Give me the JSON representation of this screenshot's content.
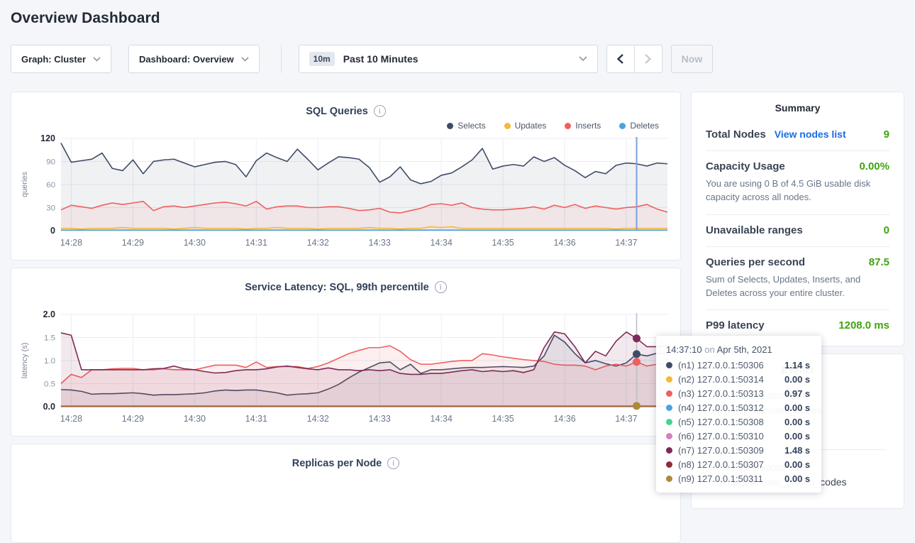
{
  "page_title": "Overview Dashboard",
  "colors": {
    "accent_green": "#3fa40e",
    "link_blue": "#1b6ce0",
    "selects": "#3f4c66",
    "updates": "#f7b836",
    "inserts": "#ef5f5f",
    "deletes": "#4da3e0",
    "hover_line_sql": "#7b9fe0",
    "hover_line_latency": "#b9bfc9",
    "page_background": "#f4f6fa"
  },
  "icons": {
    "info": "i",
    "chevron_down": "⌄",
    "chevron_left": "‹",
    "chevron_right": "›"
  },
  "controls": {
    "graph_dropdown": "Graph: Cluster",
    "dashboard_dropdown": "Dashboard: Overview",
    "time_badge": "10m",
    "time_label": "Past 10 Minutes",
    "now_label": "Now"
  },
  "summary": {
    "title": "Summary",
    "rows": [
      {
        "label": "Total Nodes",
        "link": "View nodes list",
        "value": "9"
      },
      {
        "label": "Capacity Usage",
        "value": "0.00%",
        "desc": "You are using 0 B of 4.5 GiB usable disk capacity across all nodes."
      },
      {
        "label": "Unavailable ranges",
        "value": "0"
      },
      {
        "label": "Queries per second",
        "value": "87.5",
        "desc": "Sum of Selects, Updates, Inserts, and Deletes across your entire cluster."
      },
      {
        "label": "P99 latency",
        "value": "1208.0 ms"
      }
    ]
  },
  "events": {
    "title": "Events",
    "items": [
      {
        "line1": "User root created table",
        "line2": "movr.public.promo_codes"
      },
      {
        "line1": "User root created table",
        "line2": "movr.public.user_promo_codes"
      }
    ]
  },
  "tooltip": {
    "time": "14:37:10",
    "on": "on",
    "date": "Apr 5th, 2021",
    "rows": [
      {
        "node": "(n1) 127.0.0.1:50306",
        "value": "1.14 s",
        "color": "#3f4c66"
      },
      {
        "node": "(n2) 127.0.0.1:50314",
        "value": "0.00 s",
        "color": "#f7b836"
      },
      {
        "node": "(n3) 127.0.0.1:50313",
        "value": "0.97 s",
        "color": "#ef5f5f"
      },
      {
        "node": "(n4) 127.0.0.1:50312",
        "value": "0.00 s",
        "color": "#4da3e0"
      },
      {
        "node": "(n5) 127.0.0.1:50308",
        "value": "0.00 s",
        "color": "#3fd68f"
      },
      {
        "node": "(n6) 127.0.0.1:50310",
        "value": "0.00 s",
        "color": "#d77fc0"
      },
      {
        "node": "(n7) 127.0.0.1:50309",
        "value": "1.48 s",
        "color": "#7d2a57"
      },
      {
        "node": "(n8) 127.0.0.1:50307",
        "value": "0.00 s",
        "color": "#8f2b3c"
      },
      {
        "node": "(n9) 127.0.0.1:50311",
        "value": "0.00 s",
        "color": "#ab8b3a"
      }
    ]
  },
  "chart_data": [
    {
      "type": "line",
      "title": "SQL Queries",
      "ylabel": "queries",
      "ylim": [
        0,
        120
      ],
      "y_ticks": [
        0,
        30,
        60,
        90,
        120
      ],
      "y_tick_labels": [
        "0",
        "30",
        "60",
        "90",
        "120"
      ],
      "x_labels": [
        "14:28",
        "14:29",
        "14:30",
        "14:31",
        "14:32",
        "14:33",
        "14:34",
        "14:35",
        "14:36",
        "14:37"
      ],
      "x_tick_idx": [
        1,
        7,
        13,
        19,
        25,
        31,
        37,
        43,
        49,
        55
      ],
      "n_points": 60,
      "grid": true,
      "legend_position": "top-right",
      "legend": [
        {
          "name": "Selects",
          "color": "#3f4c66"
        },
        {
          "name": "Updates",
          "color": "#f7b836"
        },
        {
          "name": "Inserts",
          "color": "#ef5f5f"
        },
        {
          "name": "Deletes",
          "color": "#4da3e0"
        }
      ],
      "hover": {
        "idx": 56,
        "color": "#7b9fe0",
        "width": 2,
        "time": "14:37:10"
      },
      "series": [
        {
          "name": "Selects",
          "color": "#3f4c66",
          "fill": 0.08,
          "values": [
            114,
            89,
            91,
            93,
            101,
            81,
            78,
            92,
            74,
            90,
            92,
            93,
            88,
            83,
            86,
            89,
            90,
            86,
            70,
            91,
            101,
            95,
            90,
            106,
            93,
            79,
            88,
            96,
            95,
            93,
            82,
            63,
            70,
            83,
            66,
            61,
            64,
            72,
            75,
            83,
            92,
            107,
            80,
            84,
            86,
            84,
            96,
            90,
            95,
            85,
            78,
            69,
            77,
            74,
            85,
            88,
            87,
            84,
            88,
            87
          ]
        },
        {
          "name": "Inserts",
          "color": "#ef5f5f",
          "fill": 0.08,
          "values": [
            27,
            33,
            31,
            29,
            33,
            36,
            34,
            36,
            38,
            26,
            31,
            32,
            30,
            32,
            34,
            36,
            37,
            35,
            32,
            38,
            28,
            31,
            32,
            32,
            30,
            30,
            31,
            31,
            29,
            26,
            27,
            29,
            24,
            23,
            26,
            29,
            34,
            35,
            33,
            36,
            30,
            28,
            27,
            27,
            28,
            29,
            31,
            28,
            33,
            30,
            34,
            29,
            32,
            30,
            28,
            30,
            31,
            34,
            28,
            24
          ]
        },
        {
          "name": "Updates",
          "color": "#f7b836",
          "fill": 0,
          "values": [
            3,
            3,
            2,
            3,
            3,
            3,
            4,
            3,
            3,
            3,
            3,
            2,
            3,
            4,
            3,
            3,
            3,
            3,
            2,
            3,
            3,
            4,
            3,
            3,
            3,
            2,
            3,
            3,
            3,
            3,
            4,
            3,
            3,
            2,
            3,
            3,
            5,
            4,
            5,
            3,
            3,
            3,
            3,
            3,
            3,
            3,
            3,
            3,
            3,
            3,
            3,
            3,
            3,
            3,
            2,
            3,
            3,
            3,
            3,
            3
          ]
        },
        {
          "name": "Deletes",
          "color": "#4da3e0",
          "fill": 0,
          "const": 0.6
        }
      ]
    },
    {
      "type": "line",
      "title": "Service Latency: SQL, 99th percentile",
      "ylabel": "latency (s)",
      "ylim": [
        0,
        2.0
      ],
      "y_ticks": [
        0,
        0.5,
        1.0,
        1.5,
        2.0
      ],
      "y_tick_labels": [
        "0.0",
        "0.5",
        "1.0",
        "1.5",
        "2.0"
      ],
      "x_labels": [
        "14:28",
        "14:29",
        "14:30",
        "14:31",
        "14:32",
        "14:33",
        "14:34",
        "14:35",
        "14:36",
        "14:37"
      ],
      "x_tick_idx": [
        1,
        7,
        13,
        19,
        25,
        31,
        37,
        43,
        49,
        55
      ],
      "n_points": 60,
      "grid": true,
      "hover": {
        "idx": 56,
        "color": "#b9bfc9",
        "width": 1.5,
        "time": "14:37:10"
      },
      "series": [
        {
          "name": "(n1) 127.0.0.1:50306",
          "color": "#3f4c66",
          "fill": 0.08,
          "dot": true,
          "values": [
            0.37,
            0.36,
            0.33,
            0.27,
            0.28,
            0.28,
            0.29,
            0.3,
            0.28,
            0.25,
            0.26,
            0.26,
            0.27,
            0.28,
            0.3,
            0.34,
            0.36,
            0.35,
            0.36,
            0.36,
            0.33,
            0.3,
            0.25,
            0.27,
            0.28,
            0.3,
            0.38,
            0.48,
            0.62,
            0.75,
            0.85,
            0.95,
            0.97,
            0.8,
            0.92,
            0.72,
            0.8,
            0.8,
            0.82,
            0.84,
            0.85,
            0.85,
            0.86,
            0.87,
            0.86,
            0.85,
            0.88,
            1.1,
            1.55,
            1.4,
            1.15,
            0.95,
            1.0,
            0.93,
            0.88,
            0.95,
            1.14,
            1.1,
            1.16,
            1.15
          ]
        },
        {
          "name": "(n3) 127.0.0.1:50313",
          "color": "#ef5f5f",
          "fill": 0.1,
          "dot": true,
          "values": [
            0.5,
            0.7,
            0.63,
            0.8,
            0.8,
            0.82,
            0.83,
            0.83,
            0.8,
            0.8,
            0.82,
            0.8,
            0.8,
            0.8,
            0.85,
            0.9,
            0.9,
            0.9,
            0.85,
            0.97,
            0.85,
            0.87,
            0.87,
            0.87,
            0.83,
            0.87,
            0.95,
            1.05,
            1.15,
            1.22,
            1.28,
            1.28,
            1.32,
            1.2,
            1.02,
            0.92,
            0.92,
            0.95,
            0.98,
            1.0,
            1.0,
            1.15,
            1.12,
            1.08,
            1.05,
            1.02,
            1.0,
            0.98,
            0.92,
            0.9,
            0.9,
            0.88,
            0.8,
            0.88,
            0.92,
            0.88,
            0.97,
            0.88,
            0.92,
            0.95
          ]
        },
        {
          "name": "(n7) 127.0.0.1:50309",
          "color": "#7d2a57",
          "fill": 0.1,
          "dot": true,
          "values": [
            1.6,
            1.55,
            0.8,
            0.8,
            0.8,
            0.8,
            0.8,
            0.8,
            0.8,
            0.82,
            0.83,
            0.88,
            0.82,
            0.8,
            0.76,
            0.73,
            0.74,
            0.78,
            0.8,
            0.8,
            0.82,
            0.86,
            0.88,
            0.85,
            0.82,
            0.8,
            0.84,
            0.8,
            0.8,
            0.78,
            0.8,
            0.78,
            0.8,
            0.72,
            0.7,
            0.7,
            0.72,
            0.72,
            0.75,
            0.78,
            0.8,
            0.76,
            0.78,
            0.76,
            0.78,
            0.74,
            0.8,
            1.28,
            1.62,
            1.58,
            1.3,
            0.95,
            1.2,
            1.1,
            1.42,
            1.62,
            1.48,
            1.3,
            1.3,
            1.32
          ]
        },
        {
          "name": "(n2) 127.0.0.1:50314",
          "color": "#f7b836",
          "fill": 0,
          "const": 0.012
        },
        {
          "name": "(n4) 127.0.0.1:50312",
          "color": "#4da3e0",
          "fill": 0,
          "const": 0.008
        },
        {
          "name": "(n5) 127.0.0.1:50308",
          "color": "#3fd68f",
          "fill": 0,
          "const": 0.006
        },
        {
          "name": "(n6) 127.0.0.1:50310",
          "color": "#d77fc0",
          "fill": 0,
          "const": 0.005
        },
        {
          "name": "(n8) 127.0.0.1:50307",
          "color": "#8f2b3c",
          "fill": 0,
          "const": 0.004
        },
        {
          "name": "(n9) 127.0.0.1:50311",
          "color": "#ab8b3a",
          "fill": 0,
          "const": 0.015,
          "dot": true
        }
      ]
    },
    {
      "type": "line",
      "title": "Replicas per Node",
      "note": "panel partially visible at bottom of viewport"
    }
  ]
}
